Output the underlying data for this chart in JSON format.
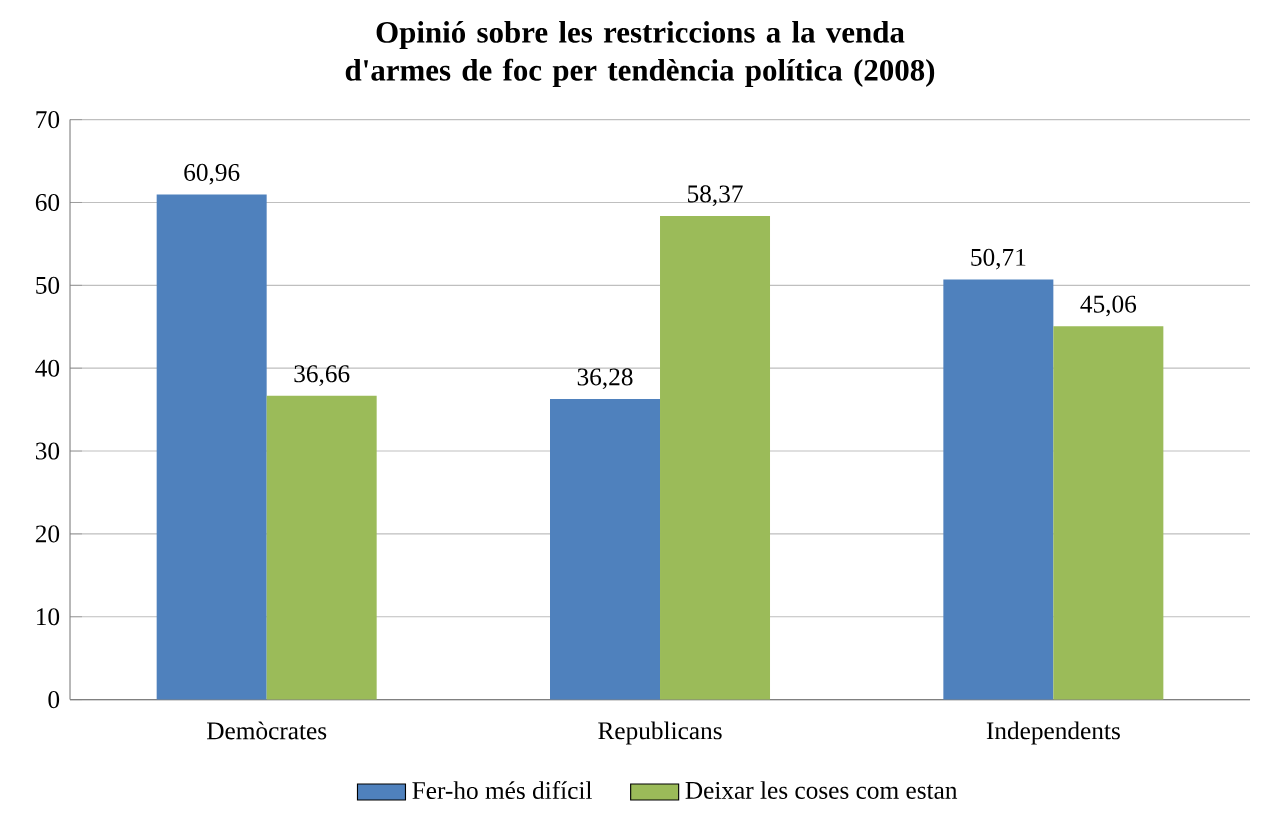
{
  "chart_data": {
    "type": "bar",
    "title": "Opinió sobre les restriccions a la venda d'armes de foc per tendència política (2008)",
    "categories": [
      "Demòcrates",
      "Republicans",
      "Independents"
    ],
    "series": [
      {
        "name": "Fer-ho més difícil",
        "color": "#4f81bd",
        "values": [
          60.96,
          36.28,
          50.71
        ],
        "value_labels": [
          "60,96",
          "36,28",
          "50,71"
        ]
      },
      {
        "name": "Deixar les coses com estan",
        "color": "#9bbb59",
        "values": [
          36.66,
          58.37,
          45.06
        ],
        "value_labels": [
          "36,66",
          "58,37",
          "45,06"
        ]
      }
    ],
    "ylim": [
      0,
      70
    ],
    "yticks": [
      0,
      10,
      20,
      30,
      40,
      50,
      60,
      70
    ],
    "grid": "y",
    "legend": "bottom"
  }
}
